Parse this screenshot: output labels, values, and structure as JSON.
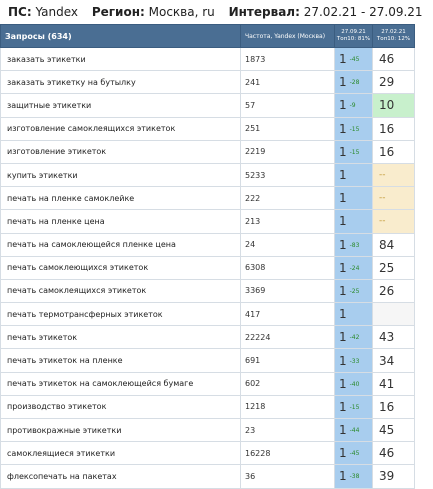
{
  "header": {
    "ps_label": "ПС:",
    "ps_value": "Yandex",
    "region_label": "Регион:",
    "region_value": "Москва, ru",
    "interval_label": "Интервал:",
    "interval_value": "27.02.21 - 27.09.21"
  },
  "table": {
    "col_query": "Запросы (634)",
    "col_freq": "Частота, Yandex (Москва)",
    "col_pos1_date": "27.09.21",
    "col_pos1_sub": "Топ10: 81%",
    "col_pos2_date": "27.02.21",
    "col_pos2_sub": "Топ10: 12%",
    "rows": [
      {
        "q": "заказать этикетки",
        "f": "1873",
        "p1": "1",
        "d": "-45",
        "p2": "46",
        "s": ""
      },
      {
        "q": "заказать этикетку на бутылку",
        "f": "241",
        "p1": "1",
        "d": "-28",
        "p2": "29",
        "s": ""
      },
      {
        "q": "защитные этикетки",
        "f": "57",
        "p1": "1",
        "d": "-9",
        "p2": "10",
        "s": "green"
      },
      {
        "q": "изготовление самоклеящихся этикеток",
        "f": "251",
        "p1": "1",
        "d": "-15",
        "p2": "16",
        "s": ""
      },
      {
        "q": "изготовление этикеток",
        "f": "2219",
        "p1": "1",
        "d": "-15",
        "p2": "16",
        "s": ""
      },
      {
        "q": "купить этикетки",
        "f": "5233",
        "p1": "1",
        "d": "",
        "p2": "--",
        "s": "yellow"
      },
      {
        "q": "печать на пленке самоклейке",
        "f": "222",
        "p1": "1",
        "d": "",
        "p2": "--",
        "s": "yellow"
      },
      {
        "q": "печать на пленке цена",
        "f": "213",
        "p1": "1",
        "d": "",
        "p2": "--",
        "s": "yellow"
      },
      {
        "q": "печать на самоклеющейся пленке цена",
        "f": "24",
        "p1": "1",
        "d": "-83",
        "p2": "84",
        "s": ""
      },
      {
        "q": "печать самоклеющихся этикеток",
        "f": "6308",
        "p1": "1",
        "d": "-24",
        "p2": "25",
        "s": ""
      },
      {
        "q": "печать самоклеящихся этикеток",
        "f": "3369",
        "p1": "1",
        "d": "-25",
        "p2": "26",
        "s": ""
      },
      {
        "q": "печать термотрансферных этикеток",
        "f": "417",
        "p1": "1",
        "d": "",
        "p2": "",
        "s": "empty"
      },
      {
        "q": "печать этикеток",
        "f": "22224",
        "p1": "1",
        "d": "-42",
        "p2": "43",
        "s": ""
      },
      {
        "q": "печать этикеток на пленке",
        "f": "691",
        "p1": "1",
        "d": "-33",
        "p2": "34",
        "s": ""
      },
      {
        "q": "печать этикеток на самоклеющейся бумаге",
        "f": "602",
        "p1": "1",
        "d": "-40",
        "p2": "41",
        "s": ""
      },
      {
        "q": "производство этикеток",
        "f": "1218",
        "p1": "1",
        "d": "-15",
        "p2": "16",
        "s": ""
      },
      {
        "q": "противокражные этикетки",
        "f": "23",
        "p1": "1",
        "d": "-44",
        "p2": "45",
        "s": ""
      },
      {
        "q": "самоклеящиеся этикетки",
        "f": "16228",
        "p1": "1",
        "d": "-45",
        "p2": "46",
        "s": ""
      },
      {
        "q": "флексопечать на пакетах",
        "f": "36",
        "p1": "1",
        "d": "-38",
        "p2": "39",
        "s": ""
      }
    ]
  }
}
